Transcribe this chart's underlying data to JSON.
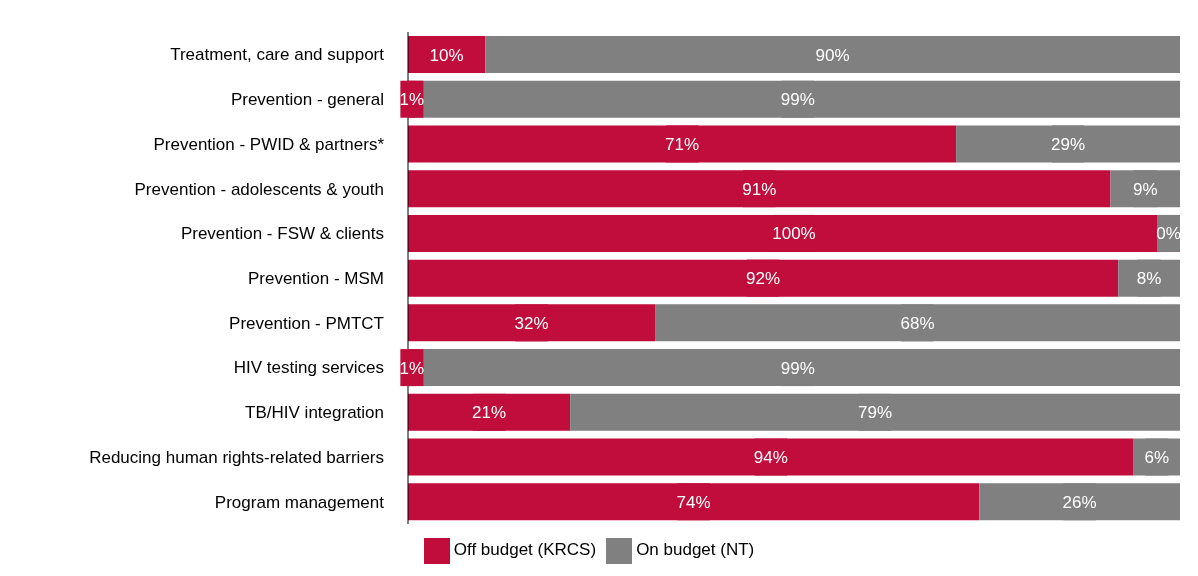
{
  "chart_data": {
    "type": "bar",
    "orientation": "horizontal",
    "stacked": true,
    "legend": "bottom",
    "grid": false,
    "categories": [
      "Treatment, care and support",
      "Prevention - general",
      "Prevention - PWID & partners*",
      "Prevention - adolescents & youth",
      "Prevention - FSW & clients",
      "Prevention - MSM",
      "Prevention - PMTCT",
      "HIV testing services",
      "TB/HIV integration",
      "Reducing human rights-related barriers",
      "Program management"
    ],
    "series": [
      {
        "name": "Off budget (KRCS)",
        "color": "#c00d3b",
        "values": [
          10,
          1,
          71,
          91,
          100,
          92,
          32,
          1,
          21,
          94,
          74
        ],
        "value_labels": [
          "10%",
          "1%",
          "71%",
          "91%",
          "100%",
          "92%",
          "32%",
          "1%",
          "21%",
          "94%",
          "74%"
        ]
      },
      {
        "name": "On budget (NT)",
        "color": "#808080",
        "values": [
          90,
          99,
          29,
          9,
          0,
          8,
          68,
          99,
          79,
          6,
          26
        ],
        "value_labels": [
          "90%",
          "99%",
          "29%",
          "9%",
          "0%",
          "8%",
          "68%",
          "99%",
          "79%",
          "6%",
          "26%"
        ]
      }
    ]
  }
}
